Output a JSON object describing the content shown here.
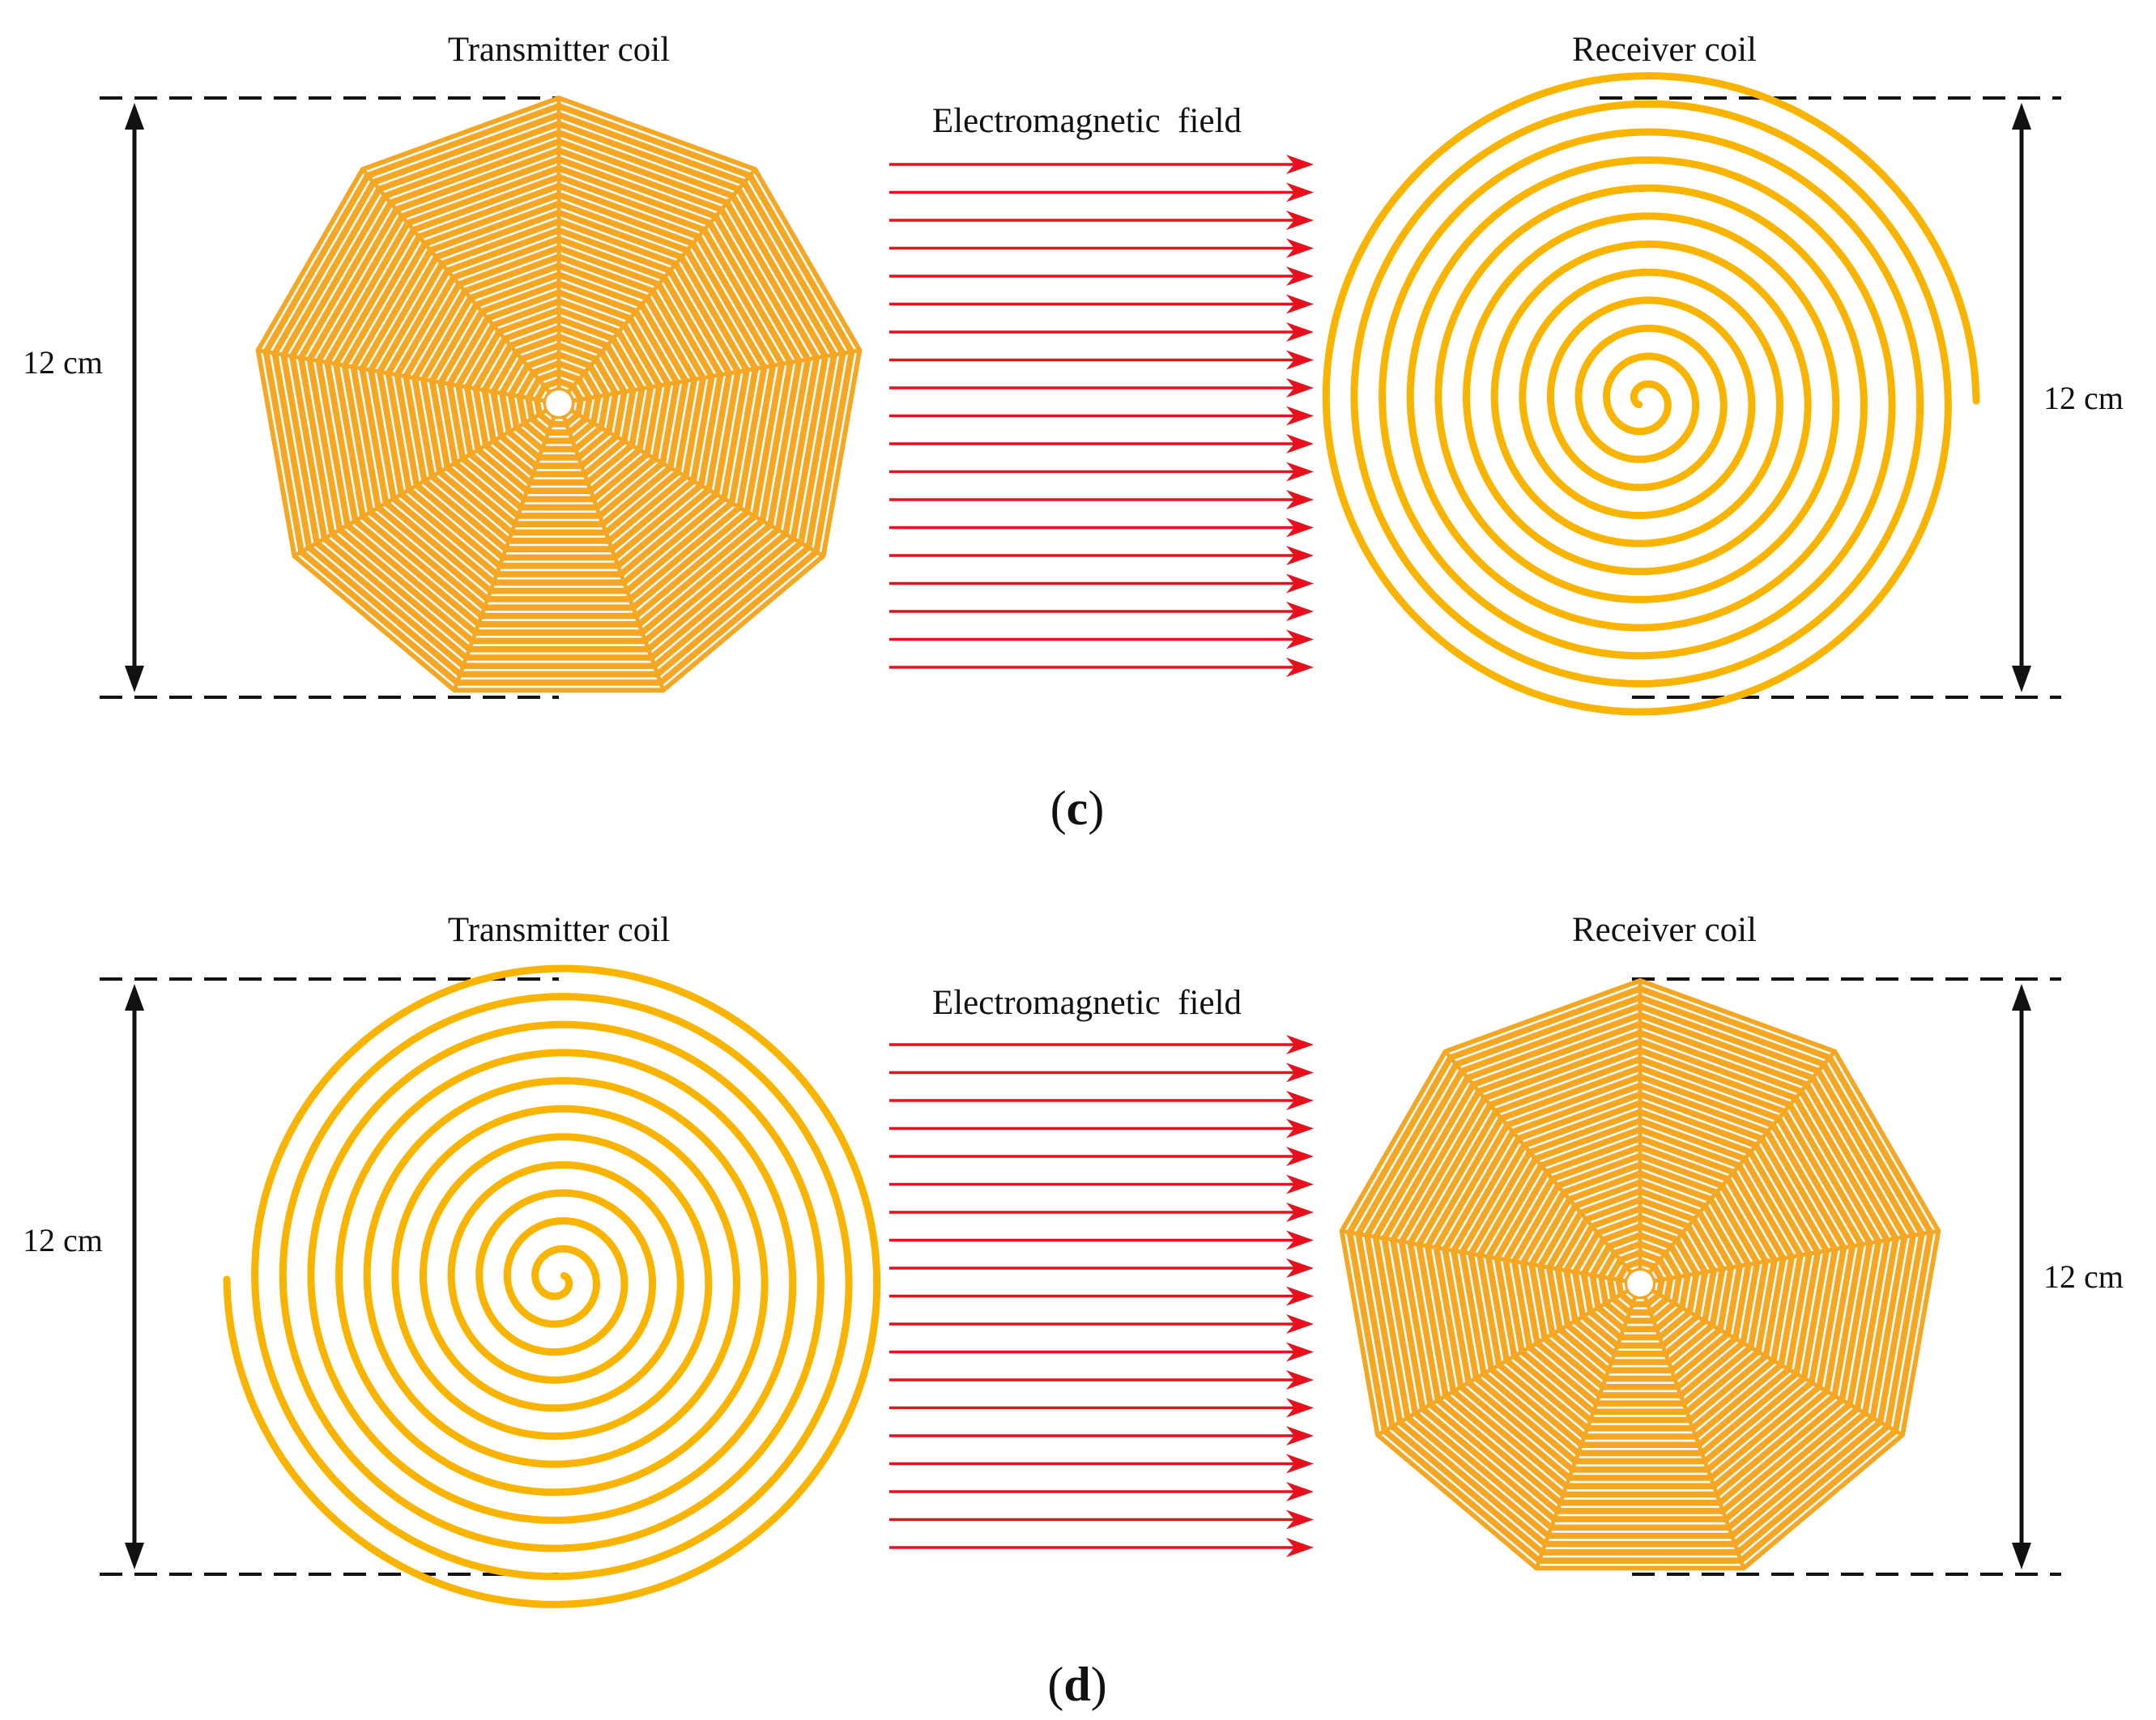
{
  "colors": {
    "coil_fill": "#F5A623",
    "coil_spiral": "#F8B400",
    "field_arrow": "#E8101C",
    "dimension": "#111111",
    "background": "#FFFFFF"
  },
  "panels": [
    {
      "id": "c",
      "label_open": "(",
      "label_letter": "c",
      "label_close": ")",
      "left": {
        "title": "Transmitter coil",
        "coil_type": "octagon"
      },
      "field_title": "Electromagnetic  field",
      "right": {
        "title": "Receiver coil",
        "coil_type": "circular-spiral"
      },
      "left_dimension": "12 cm",
      "right_dimension": "12 cm"
    },
    {
      "id": "d",
      "label_open": "(",
      "label_letter": "d",
      "label_close": ")",
      "left": {
        "title": "Transmitter coil",
        "coil_type": "circular-spiral"
      },
      "field_title": "Electromagnetic  field",
      "right": {
        "title": "Receiver coil",
        "coil_type": "octagon"
      },
      "left_dimension": "12 cm",
      "right_dimension": "12 cm"
    }
  ]
}
